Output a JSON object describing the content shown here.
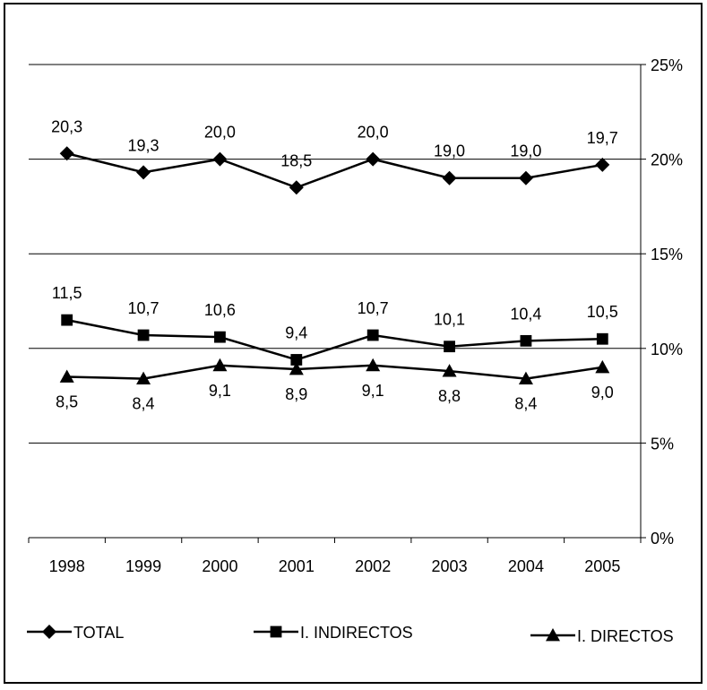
{
  "chart_data": {
    "type": "line",
    "categories": [
      "1998",
      "1999",
      "2000",
      "2001",
      "2002",
      "2003",
      "2004",
      "2005"
    ],
    "ylim": [
      0,
      25
    ],
    "yticks": [
      0,
      5,
      10,
      15,
      20,
      25
    ],
    "ytick_labels": [
      "0%",
      "5%",
      "10%",
      "15%",
      "20%",
      "25%"
    ],
    "y_axis_position": "right",
    "grid": true,
    "legend_position": "bottom",
    "series": [
      {
        "name": "TOTAL",
        "marker": "diamond",
        "values": [
          20.3,
          19.3,
          20.0,
          18.5,
          20.0,
          19.0,
          19.0,
          19.7
        ],
        "labels": [
          "20,3",
          "19,3",
          "20,0",
          "18,5",
          "20,0",
          "19,0",
          "19,0",
          "19,7"
        ],
        "label_position": "above"
      },
      {
        "name": "I. INDIRECTOS",
        "marker": "square",
        "values": [
          11.5,
          10.7,
          10.6,
          9.4,
          10.7,
          10.1,
          10.4,
          10.5
        ],
        "labels": [
          "11,5",
          "10,7",
          "10,6",
          "9,4",
          "10,7",
          "10,1",
          "10,4",
          "10,5"
        ],
        "label_position": "above"
      },
      {
        "name": "I. DIRECTOS",
        "marker": "triangle",
        "values": [
          8.5,
          8.4,
          9.1,
          8.9,
          9.1,
          8.8,
          8.4,
          9.0
        ],
        "labels": [
          "8,5",
          "8,4",
          "9,1",
          "8,9",
          "9,1",
          "8,8",
          "8,4",
          "9,0"
        ],
        "label_position": "below"
      }
    ],
    "colors": {
      "line": "#000000",
      "grid": "#000000",
      "background": "#ffffff"
    }
  }
}
